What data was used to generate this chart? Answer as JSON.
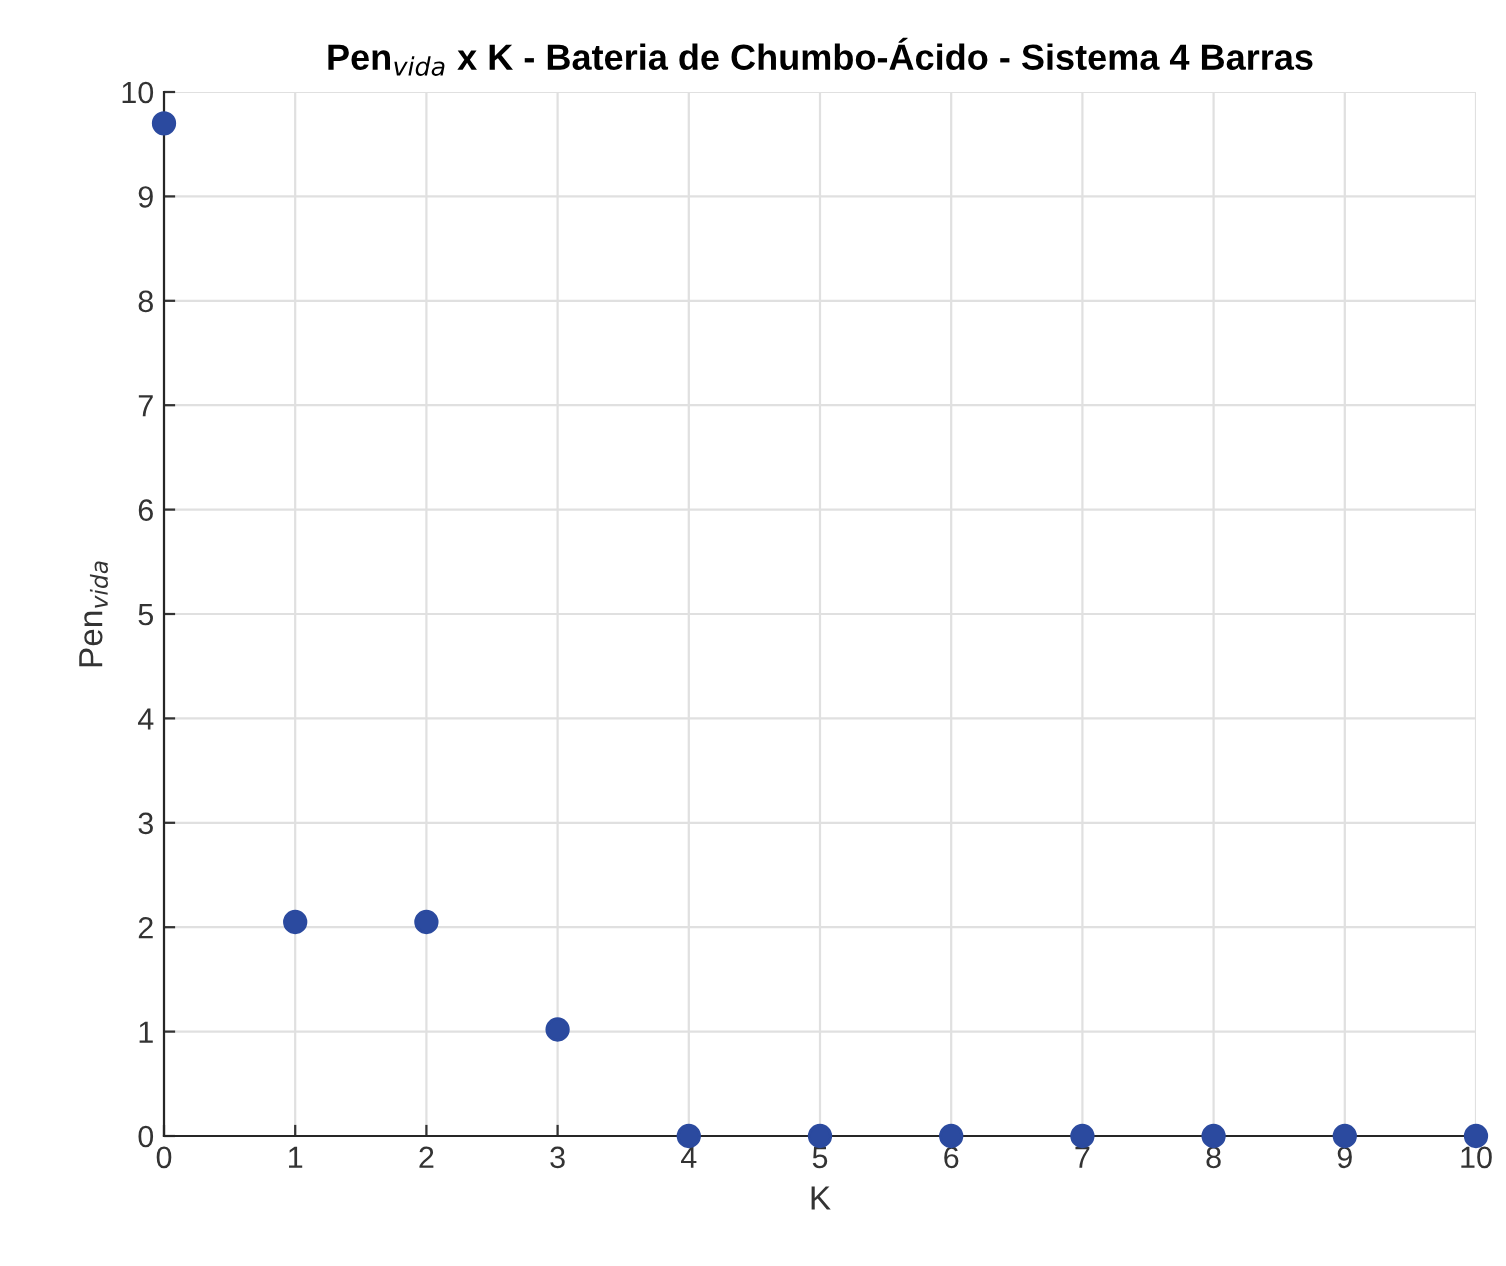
{
  "chart_data": {
    "type": "scatter",
    "title": "Pen$_{vida}$ x K - Bateria de Chumbo-Ácido - Sistema 4 Barras",
    "xlabel": "K",
    "ylabel": "Pen$_{vida}$",
    "x": [
      0,
      1,
      2,
      3,
      4,
      5,
      6,
      7,
      8,
      9,
      10
    ],
    "series": [
      {
        "color": "#2b4a9f",
        "values": [
          9.7,
          2.05,
          2.05,
          1.02,
          0,
          0,
          0,
          0,
          0,
          0,
          0
        ]
      }
    ],
    "xlim": [
      0,
      10
    ],
    "ylim": [
      0,
      10
    ],
    "xticks": [
      0,
      1,
      2,
      3,
      4,
      5,
      6,
      7,
      8,
      9,
      10
    ],
    "yticks": [
      0,
      1,
      2,
      3,
      4,
      5,
      6,
      7,
      8,
      9,
      10
    ],
    "grid": true,
    "marker": "circle"
  }
}
